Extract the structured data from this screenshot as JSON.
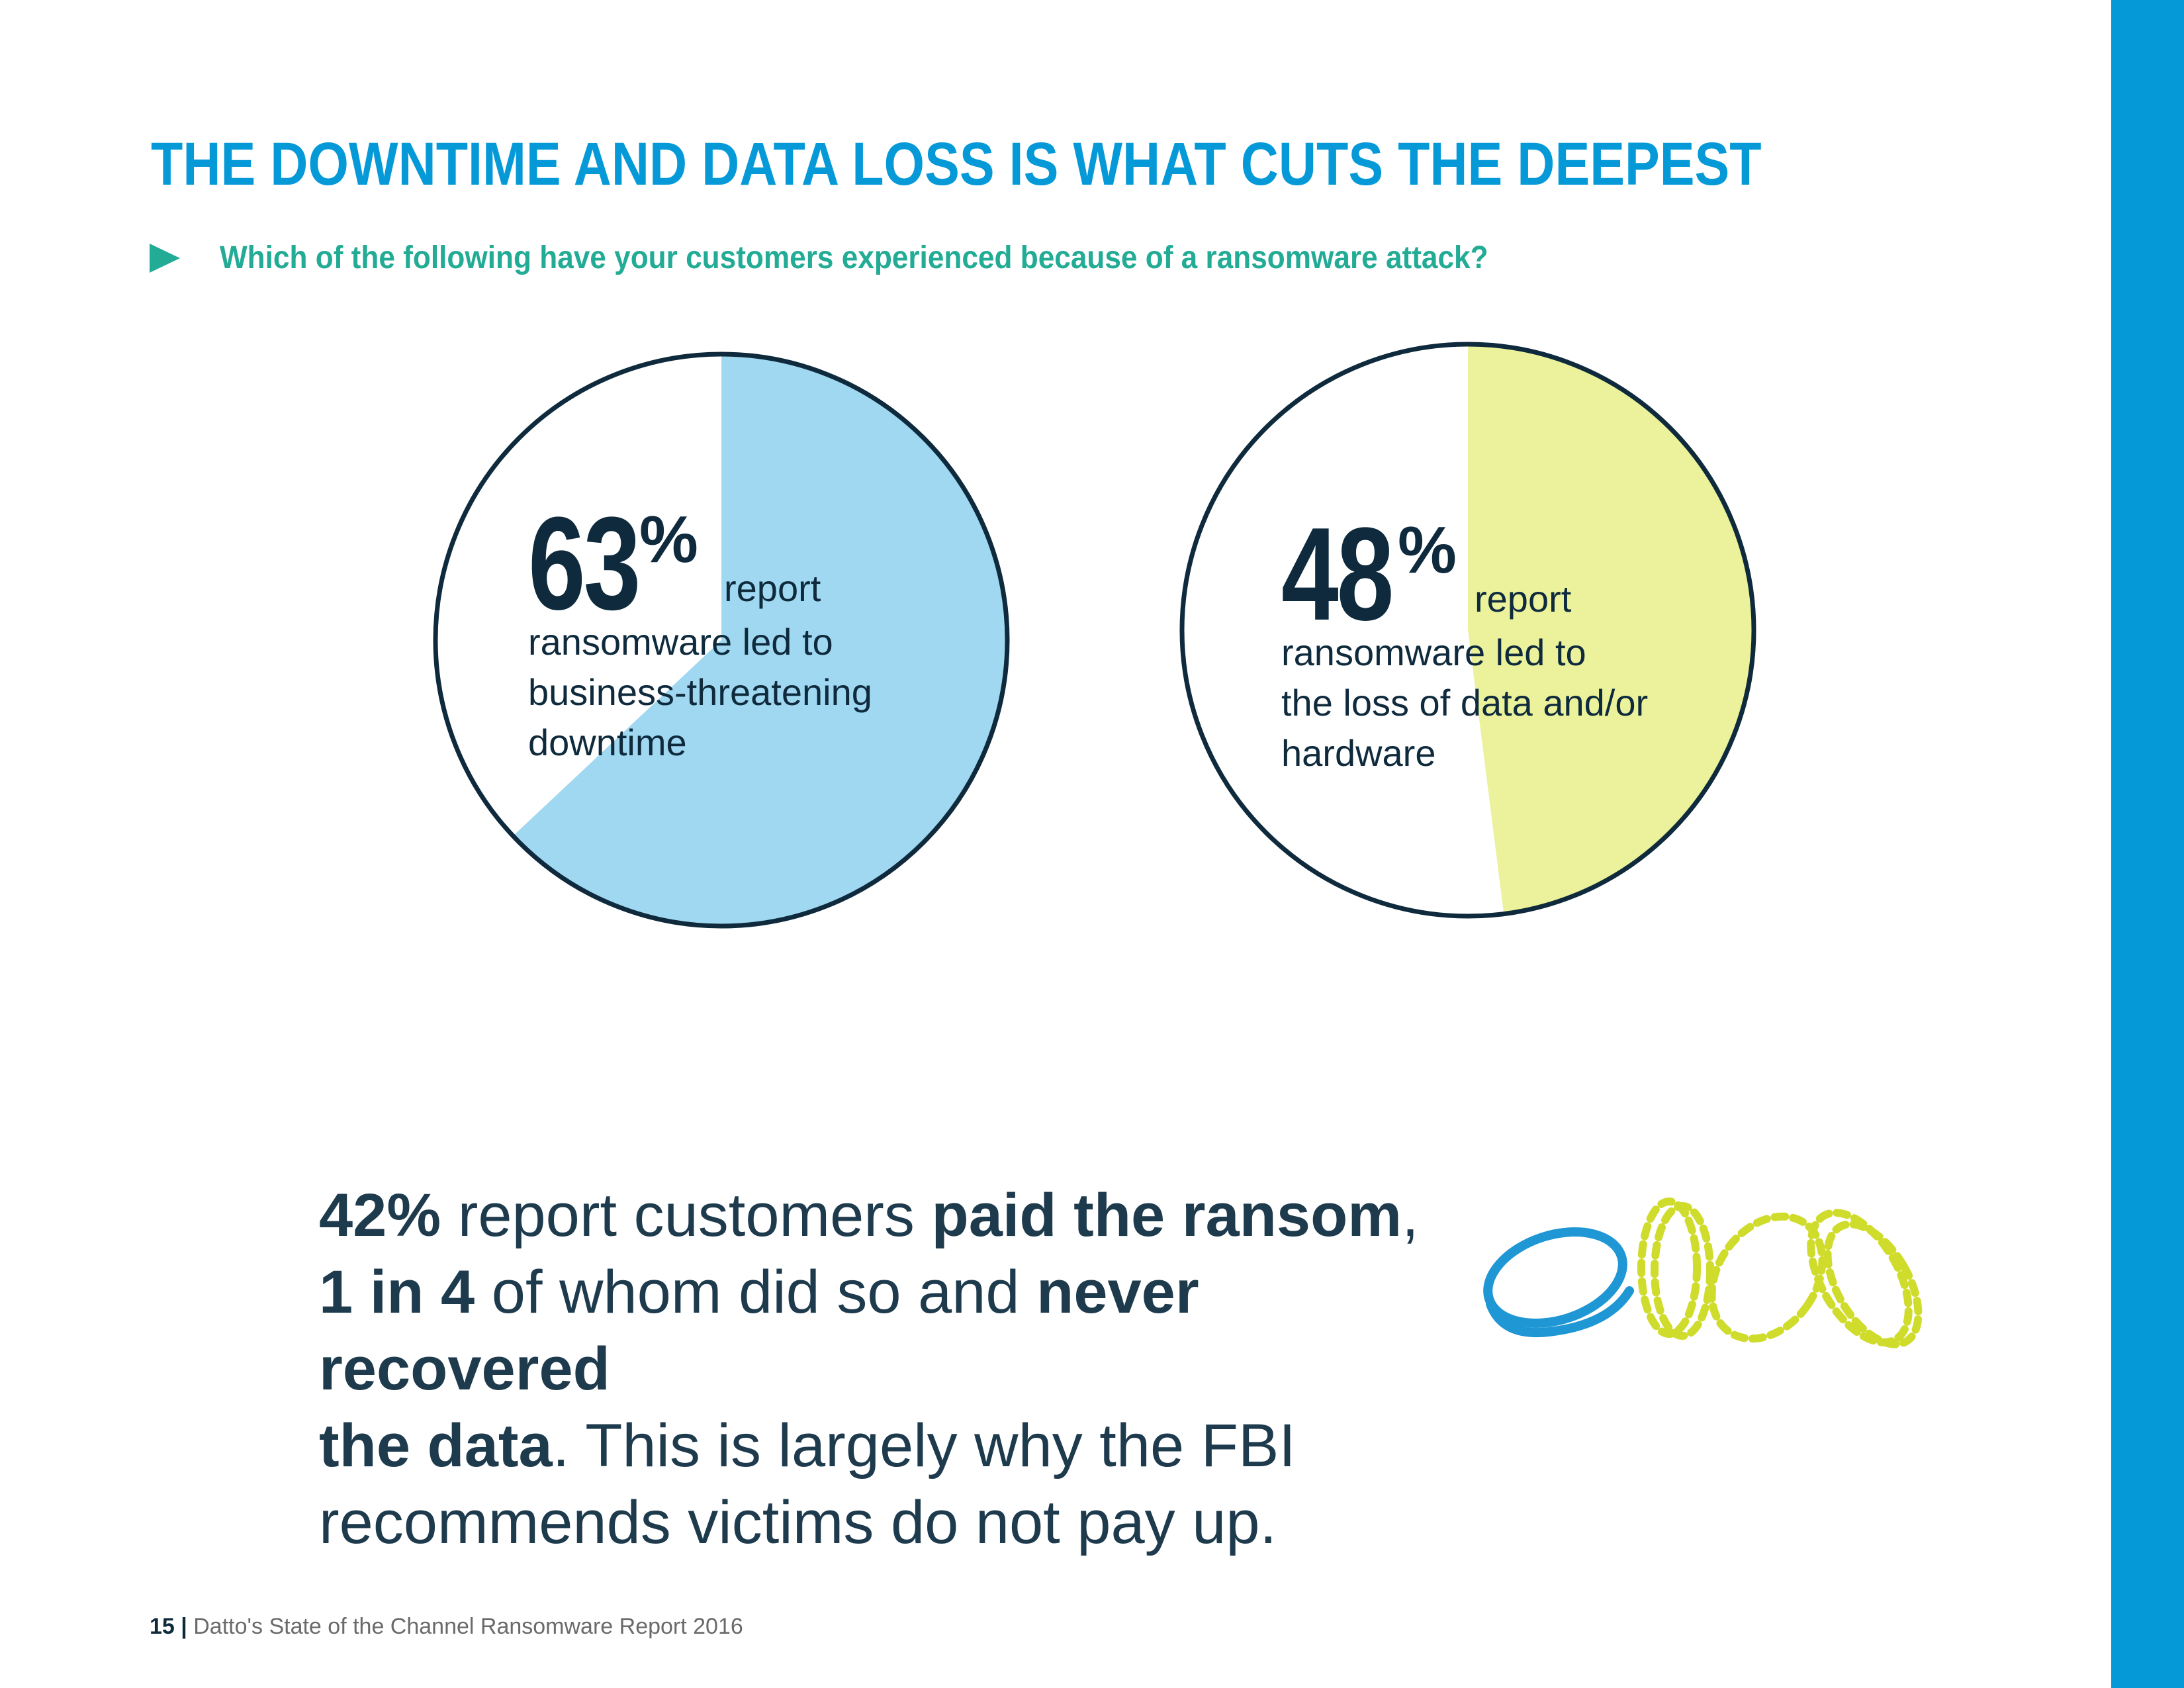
{
  "page": {
    "title": "THE DOWNTIME AND DATA LOSS IS WHAT CUTS THE DEEPEST",
    "question": "Which of the following have your customers experienced because of a ransomware attack?",
    "accent_color": "#0599d8",
    "question_color": "#22ab95"
  },
  "chart_data": [
    {
      "type": "pie",
      "values": [
        63,
        37
      ],
      "colors": [
        "#a0d8f1",
        "#ffffff"
      ],
      "stat": {
        "number": "63",
        "percent_sign": "%",
        "lead": "report",
        "lines": [
          "ransomware led to",
          "business-threatening",
          "downtime"
        ]
      }
    },
    {
      "type": "pie",
      "values": [
        48,
        52
      ],
      "colors": [
        "#ebf29b",
        "#ffffff"
      ],
      "stat": {
        "number": "48",
        "percent_sign": "%",
        "lead": "report",
        "lines": [
          "ransomware led to",
          "the loss of data and/or",
          "hardware"
        ]
      }
    }
  ],
  "callout": {
    "line1": {
      "bold1": "42%",
      "text1": " report customers ",
      "bold2": "paid the ransom",
      "text2": ","
    },
    "line2": {
      "bold1": "1 in 4",
      "text1": " of whom did so and ",
      "bold2": "never recovered"
    },
    "line3": {
      "bold1": "the data",
      "text1": ". This is largely why the FBI"
    },
    "line4": {
      "text1": "recommends victims do ",
      "medium": "not",
      "text2": " pay up."
    }
  },
  "illustration": {
    "icon": "coins-icon",
    "solid_color": "#1f97d4",
    "dashed_color": "#cfdc2c"
  },
  "footer": {
    "page_number": "15",
    "separator": "|",
    "text": "Datto's State of the Channel Ransomware Report 2016"
  }
}
